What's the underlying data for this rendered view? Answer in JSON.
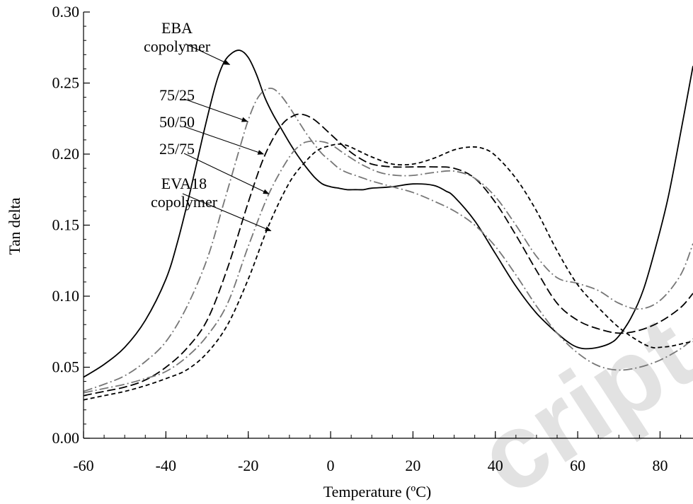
{
  "chart_data": {
    "type": "line",
    "xlabel": "Temperature (ºC)",
    "ylabel": "Tan delta",
    "xlim": [
      -60,
      88
    ],
    "ylim": [
      0,
      0.3
    ],
    "x_ticks": [
      -60,
      -40,
      -20,
      0,
      20,
      40,
      60,
      80
    ],
    "x_tick_labels": [
      "-60",
      "-40",
      "-20",
      "0",
      "20",
      "40",
      "60",
      "80"
    ],
    "y_ticks": [
      0,
      0.05,
      0.1,
      0.15,
      0.2,
      0.25,
      0.3
    ],
    "y_tick_labels": [
      "0.00",
      "0.05",
      "0.10",
      "0.15",
      "0.20",
      "0.25",
      "0.30"
    ],
    "grid": false,
    "watermark": "cript",
    "series": [
      {
        "name": "EBA copolymer",
        "color": "#000000",
        "dash": "solid",
        "x": [
          -60,
          -55,
          -50,
          -45,
          -40,
          -37,
          -34,
          -31,
          -28,
          -26,
          -24,
          -22,
          -20,
          -18,
          -16,
          -14,
          -12,
          -10,
          -8,
          -6,
          -4,
          -2,
          0,
          2,
          4,
          6,
          8,
          10,
          15,
          20,
          25,
          28,
          30,
          35,
          40,
          45,
          50,
          55,
          58,
          60,
          62,
          65,
          68,
          70,
          73,
          76,
          79,
          82,
          85,
          88
        ],
        "values": [
          0.043,
          0.052,
          0.064,
          0.083,
          0.112,
          0.14,
          0.175,
          0.213,
          0.248,
          0.264,
          0.271,
          0.273,
          0.268,
          0.256,
          0.24,
          0.228,
          0.218,
          0.208,
          0.199,
          0.191,
          0.184,
          0.179,
          0.177,
          0.176,
          0.175,
          0.175,
          0.175,
          0.176,
          0.177,
          0.179,
          0.178,
          0.174,
          0.17,
          0.153,
          0.13,
          0.107,
          0.088,
          0.074,
          0.067,
          0.064,
          0.063,
          0.064,
          0.067,
          0.072,
          0.085,
          0.105,
          0.135,
          0.17,
          0.215,
          0.262
        ]
      },
      {
        "name": "75/25",
        "color": "#777777",
        "dash": "dashdot",
        "x": [
          -60,
          -55,
          -50,
          -45,
          -40,
          -35,
          -30,
          -26,
          -22,
          -20,
          -18,
          -16,
          -14,
          -12,
          -10,
          -8,
          -6,
          -4,
          -2,
          0,
          2,
          4,
          6,
          8,
          10,
          15,
          20,
          25,
          30,
          35,
          40,
          45,
          50,
          55,
          60,
          65,
          70,
          75,
          80,
          85,
          88
        ],
        "values": [
          0.033,
          0.038,
          0.044,
          0.054,
          0.068,
          0.092,
          0.126,
          0.165,
          0.205,
          0.224,
          0.238,
          0.245,
          0.246,
          0.241,
          0.233,
          0.224,
          0.215,
          0.207,
          0.2,
          0.195,
          0.19,
          0.187,
          0.185,
          0.183,
          0.181,
          0.177,
          0.173,
          0.167,
          0.16,
          0.15,
          0.135,
          0.115,
          0.093,
          0.074,
          0.06,
          0.051,
          0.048,
          0.05,
          0.055,
          0.063,
          0.07
        ]
      },
      {
        "name": "50/50",
        "color": "#000000",
        "dash": "longdash",
        "x": [
          -60,
          -55,
          -50,
          -45,
          -40,
          -35,
          -30,
          -25,
          -20,
          -16,
          -12,
          -9,
          -7,
          -5,
          -3,
          0,
          3,
          6,
          10,
          15,
          20,
          25,
          30,
          35,
          40,
          45,
          50,
          55,
          60,
          65,
          70,
          75,
          80,
          85,
          88
        ],
        "values": [
          0.03,
          0.033,
          0.036,
          0.041,
          0.05,
          0.063,
          0.083,
          0.12,
          0.166,
          0.199,
          0.22,
          0.227,
          0.228,
          0.226,
          0.222,
          0.214,
          0.206,
          0.199,
          0.193,
          0.191,
          0.191,
          0.191,
          0.19,
          0.183,
          0.166,
          0.143,
          0.118,
          0.095,
          0.083,
          0.077,
          0.074,
          0.076,
          0.082,
          0.092,
          0.102
        ]
      },
      {
        "name": "25/75",
        "color": "#777777",
        "dash": "dashdot",
        "x": [
          -60,
          -55,
          -50,
          -45,
          -40,
          -35,
          -30,
          -25,
          -20,
          -15,
          -10,
          -7,
          -5,
          -3,
          -1,
          1,
          4,
          8,
          12,
          16,
          20,
          25,
          30,
          35,
          40,
          45,
          50,
          55,
          60,
          65,
          70,
          75,
          80,
          85,
          88
        ],
        "values": [
          0.032,
          0.035,
          0.038,
          0.042,
          0.047,
          0.057,
          0.072,
          0.095,
          0.135,
          0.172,
          0.198,
          0.207,
          0.209,
          0.209,
          0.208,
          0.205,
          0.199,
          0.192,
          0.187,
          0.185,
          0.185,
          0.187,
          0.188,
          0.183,
          0.17,
          0.15,
          0.128,
          0.113,
          0.109,
          0.104,
          0.095,
          0.091,
          0.097,
          0.115,
          0.137
        ]
      },
      {
        "name": "EVA18 copolymer",
        "color": "#000000",
        "dash": "shortdash",
        "x": [
          -60,
          -55,
          -50,
          -45,
          -40,
          -35,
          -30,
          -25,
          -20,
          -15,
          -10,
          -6,
          -3,
          0,
          2,
          4,
          7,
          10,
          15,
          20,
          25,
          30,
          34,
          37,
          40,
          45,
          50,
          55,
          60,
          65,
          70,
          75,
          78,
          80,
          83,
          86,
          88
        ],
        "values": [
          0.027,
          0.03,
          0.033,
          0.037,
          0.042,
          0.048,
          0.06,
          0.08,
          0.112,
          0.15,
          0.18,
          0.195,
          0.203,
          0.206,
          0.207,
          0.206,
          0.202,
          0.198,
          0.193,
          0.193,
          0.197,
          0.203,
          0.205,
          0.204,
          0.199,
          0.183,
          0.16,
          0.132,
          0.108,
          0.092,
          0.078,
          0.068,
          0.064,
          0.064,
          0.065,
          0.067,
          0.068
        ]
      }
    ],
    "annotations": [
      {
        "lines": [
          "EBA",
          "copolymer"
        ],
        "target_x": -24.5,
        "target_y": 0.263,
        "series": "EBA copolymer"
      },
      {
        "lines": [
          "75/25"
        ],
        "target_x": -20.2,
        "target_y": 0.223,
        "series": "75/25"
      },
      {
        "lines": [
          "50/50"
        ],
        "target_x": -16.3,
        "target_y": 0.2,
        "series": "50/50"
      },
      {
        "lines": [
          "25/75"
        ],
        "target_x": -15.0,
        "target_y": 0.172,
        "series": "25/75"
      },
      {
        "lines": [
          "EVA18",
          "copolymer"
        ],
        "target_x": -14.5,
        "target_y": 0.146,
        "series": "EVA18 copolymer"
      }
    ]
  }
}
